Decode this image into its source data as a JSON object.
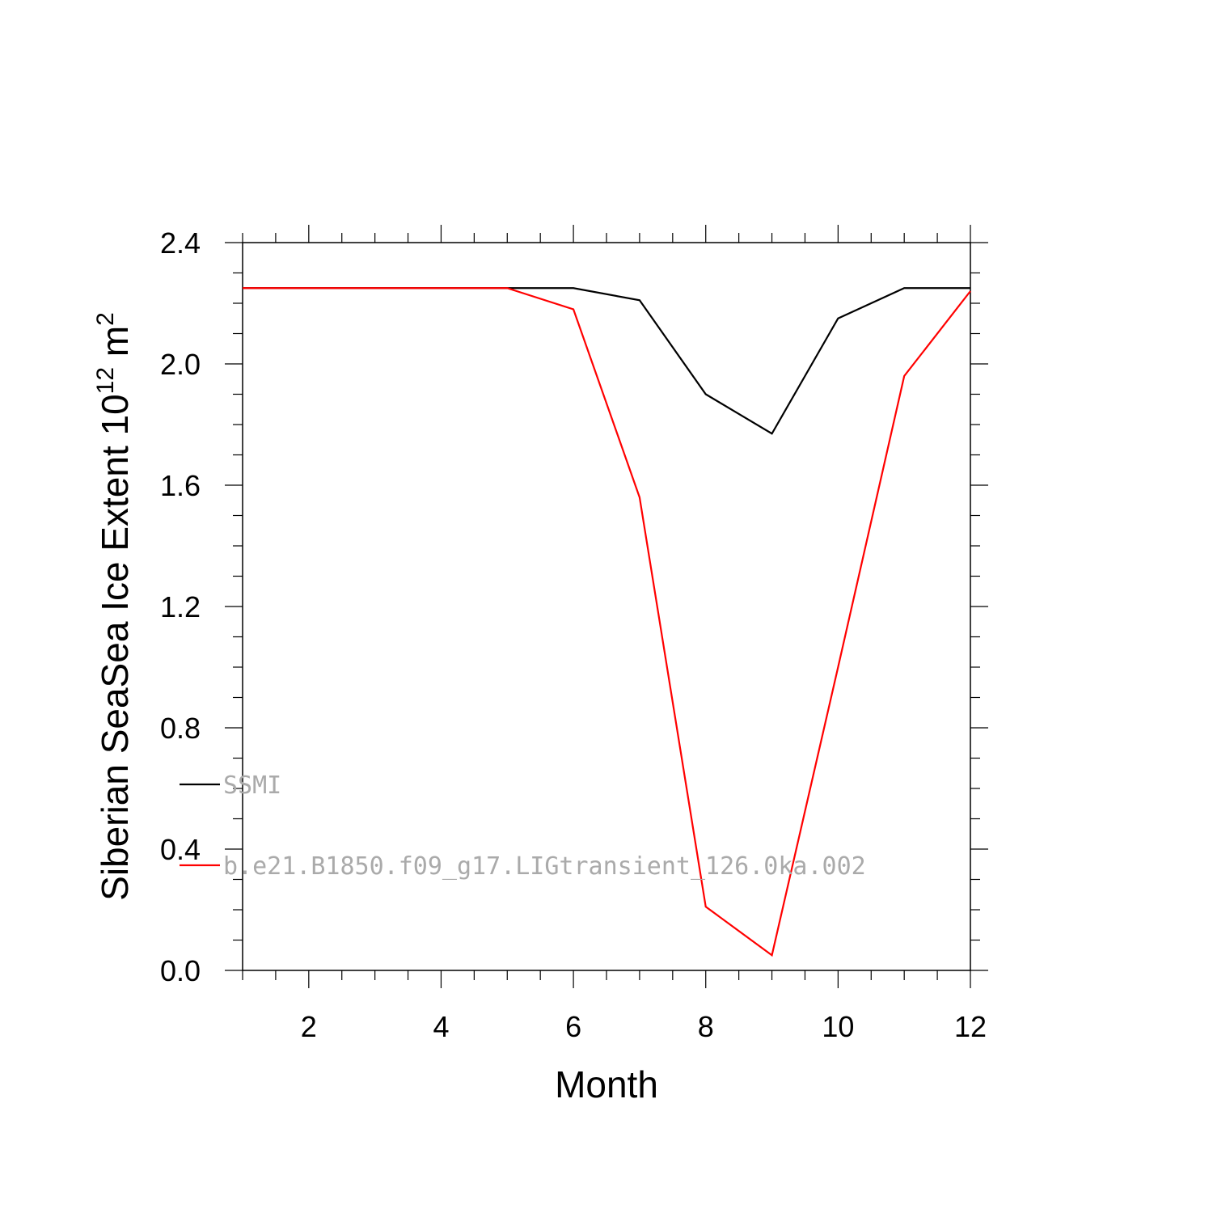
{
  "chart_data": {
    "type": "line",
    "xlabel": "Month",
    "ylabel_main": "Siberian SeaSea Ice Extent 10",
    "ylabel_sup": "12",
    "ylabel_unit": " m",
    "ylabel_unit_sup": "2",
    "xlim": [
      1,
      12
    ],
    "ylim": [
      0.0,
      2.4
    ],
    "x_ticks": [
      2,
      4,
      6,
      8,
      10,
      12
    ],
    "x_tick_labels": [
      "2",
      "4",
      "6",
      "8",
      "10",
      "12"
    ],
    "y_ticks": [
      0.0,
      0.4,
      0.8,
      1.2,
      1.6,
      2.0,
      2.4
    ],
    "y_tick_labels": [
      "0.0",
      "0.4",
      "0.8",
      "1.2",
      "1.6",
      "2.0",
      "2.4"
    ],
    "x": [
      1,
      2,
      3,
      4,
      5,
      6,
      7,
      8,
      9,
      10,
      11,
      12
    ],
    "series": [
      {
        "name": "SSMI",
        "color": "#000000",
        "values": [
          2.25,
          2.25,
          2.25,
          2.25,
          2.25,
          2.25,
          2.21,
          1.9,
          1.77,
          2.15,
          2.25,
          2.25
        ]
      },
      {
        "name": "b.e21.B1850.f09_g17.LIGtransient_126.0ka.002",
        "color": "#ff0000",
        "values": [
          2.25,
          2.25,
          2.25,
          2.25,
          2.25,
          2.18,
          1.56,
          0.21,
          0.05,
          1.0,
          1.96,
          2.24
        ]
      }
    ],
    "legend_position": "lower-left",
    "grid": false
  }
}
